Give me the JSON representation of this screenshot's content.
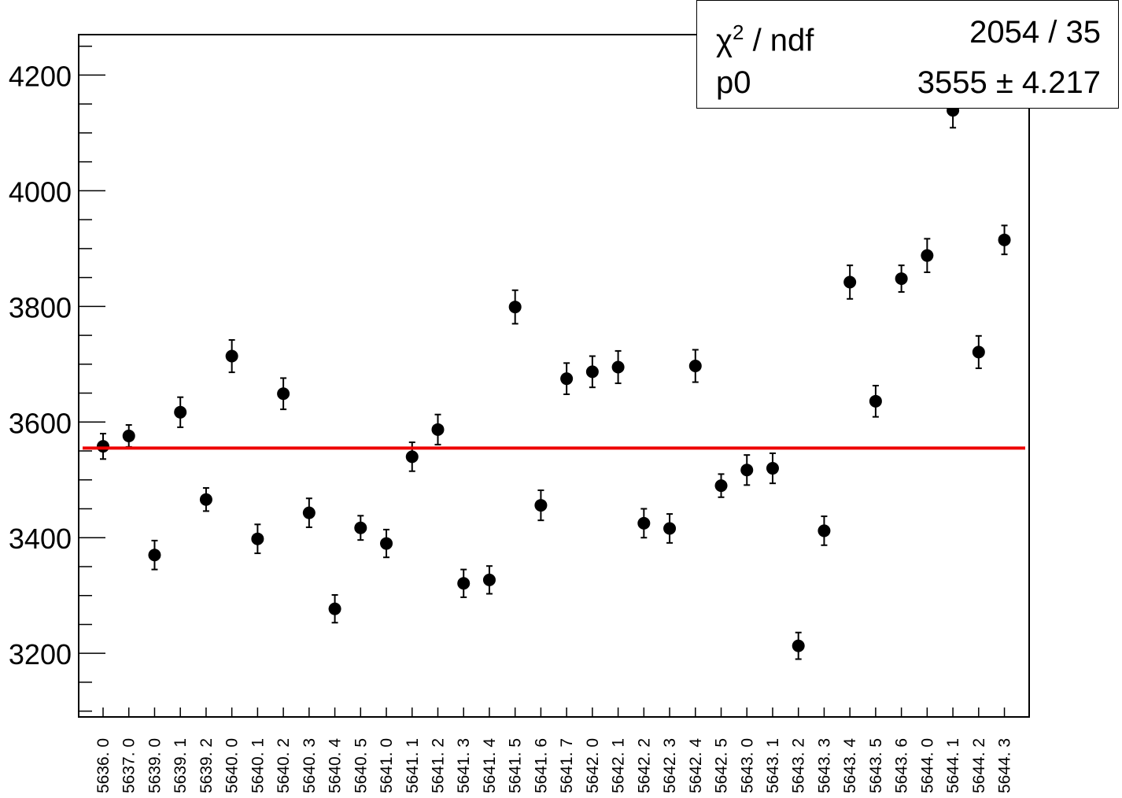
{
  "chart_data": {
    "type": "scatter",
    "categories": [
      "5636. 0",
      "5637. 0",
      "5639. 0",
      "5639. 1",
      "5639. 2",
      "5640. 0",
      "5640. 1",
      "5640. 2",
      "5640. 3",
      "5640. 4",
      "5640. 5",
      "5641. 0",
      "5641. 1",
      "5641. 2",
      "5641. 3",
      "5641. 4",
      "5641. 5",
      "5641. 6",
      "5641. 7",
      "5642. 0",
      "5642. 1",
      "5642. 2",
      "5642. 3",
      "5642. 4",
      "5642. 5",
      "5643. 0",
      "5643. 1",
      "5643. 2",
      "5643. 3",
      "5643. 4",
      "5643. 5",
      "5643. 6",
      "5644. 0",
      "5644. 1",
      "5644. 2",
      "5644. 3"
    ],
    "values": [
      3558,
      3576,
      3370,
      3617,
      3466,
      3714,
      3398,
      3649,
      3443,
      3277,
      3417,
      3390,
      3540,
      3587,
      3321,
      3327,
      3799,
      3456,
      3675,
      3687,
      3695,
      3425,
      3416,
      3697,
      3490,
      3517,
      3520,
      3213,
      3412,
      3842,
      3636,
      3848,
      3888,
      4139,
      3721,
      3915
    ],
    "errors": [
      22,
      19,
      25,
      26,
      20,
      28,
      25,
      27,
      25,
      24,
      21,
      24,
      25,
      26,
      24,
      24,
      29,
      26,
      27,
      27,
      28,
      25,
      25,
      28,
      20,
      26,
      26,
      23,
      25,
      29,
      27,
      23,
      29,
      30,
      28,
      25
    ],
    "ylim": [
      3090,
      4270
    ],
    "yticks": [
      3200,
      3400,
      3600,
      3800,
      4000,
      4200
    ],
    "ytick_labels": [
      "3200",
      "3400",
      "3600",
      "3800",
      "4000",
      "4200"
    ],
    "fit": {
      "p0": 3555,
      "color": "#ee0000"
    },
    "grid": false
  },
  "stats_box": {
    "chi2_label": "χ",
    "chi2_sup": "2",
    "chi2_suffix": " / ndf",
    "chi2_value": "2054 / 35",
    "p0_label": "p0",
    "p0_value": "3555 ± 4.217"
  }
}
